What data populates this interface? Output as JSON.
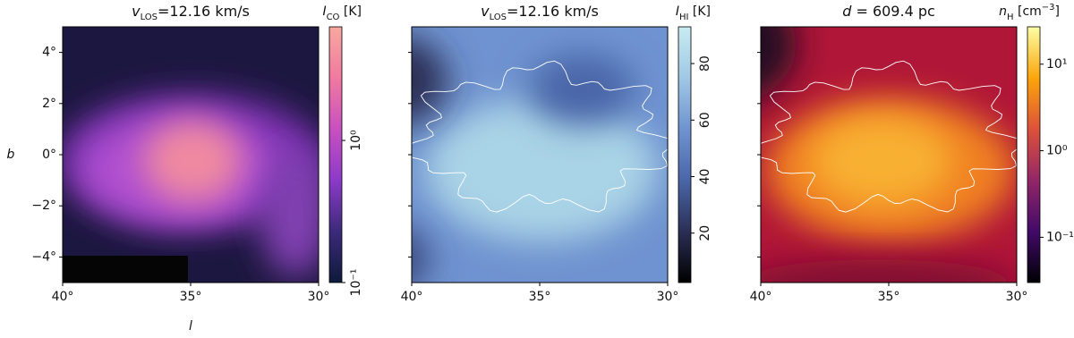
{
  "chart_data": [
    {
      "type": "image",
      "title": [
        {
          "text": "v",
          "style": "italic"
        },
        {
          "text": "LOS",
          "style": "sub"
        },
        {
          "text": "=12.16 km/s"
        }
      ],
      "xlabel": "l",
      "ylabel": "b",
      "xlim": [
        40,
        30
      ],
      "ylim": [
        -5,
        5
      ],
      "xticks": [
        {
          "value": 40,
          "label": "40°"
        },
        {
          "value": 35,
          "label": "35°"
        },
        {
          "value": 30,
          "label": "30°"
        }
      ],
      "yticks": [
        {
          "value": -4,
          "label": "−4°"
        },
        {
          "value": -2,
          "label": "−2°"
        },
        {
          "value": 0,
          "label": "0°"
        },
        {
          "value": 2,
          "label": "2°"
        },
        {
          "value": 4,
          "label": "4°"
        }
      ],
      "colorbar": {
        "label": [
          {
            "text": "I",
            "style": "italic"
          },
          {
            "text": "CO",
            "style": "sub"
          },
          {
            "text": " [K]"
          }
        ],
        "scale": "log",
        "lim": [
          0.1,
          6.3
        ],
        "ticks": [
          {
            "value": 0.1,
            "label": "10⁻¹"
          },
          {
            "value": 1,
            "label": "10⁰"
          }
        ],
        "tick_rotation": 90,
        "colors": [
          "#0d1a3a",
          "#3c2a7a",
          "#8c3ac8",
          "#c850c0",
          "#f07aa0",
          "#f8a8a0"
        ]
      }
    },
    {
      "type": "image",
      "title": [
        {
          "text": "v",
          "style": "italic"
        },
        {
          "text": "LOS",
          "style": "sub"
        },
        {
          "text": "=12.16 km/s"
        }
      ],
      "xlim": [
        40,
        30
      ],
      "ylim": [
        -5,
        5
      ],
      "xticks": [
        {
          "value": 40,
          "label": "40°"
        },
        {
          "value": 35,
          "label": "35°"
        },
        {
          "value": 30,
          "label": "30°"
        }
      ],
      "yticks": [
        -4,
        -2,
        0,
        2,
        4
      ],
      "colorbar": {
        "label": [
          {
            "text": "I",
            "style": "italic"
          },
          {
            "text": "HI",
            "style": "sub"
          },
          {
            "text": " [K]"
          }
        ],
        "scale": "linear",
        "lim": [
          2.5,
          93
        ],
        "ticks": [
          20,
          40,
          60,
          80
        ],
        "tick_rotation": 90,
        "colors": [
          "#000000",
          "#2a2f55",
          "#4a66a8",
          "#6f93d0",
          "#a0c8e4",
          "#c8ecf0"
        ]
      }
    },
    {
      "type": "image",
      "title": [
        {
          "text": "d",
          "style": "italic"
        },
        {
          "text": " = 609.4 pc"
        }
      ],
      "xlim": [
        40,
        30
      ],
      "ylim": [
        -5,
        5
      ],
      "xticks": [
        {
          "value": 40,
          "label": "40°"
        },
        {
          "value": 35,
          "label": "35°"
        },
        {
          "value": 30,
          "label": "30°"
        }
      ],
      "yticks": [
        -4,
        -2,
        0,
        2,
        4
      ],
      "colorbar": {
        "label": [
          {
            "text": "n",
            "style": "italic"
          },
          {
            "text": "H",
            "style": "sub"
          },
          {
            "text": " [cm"
          },
          {
            "text": "−3",
            "style": "sup"
          },
          {
            "text": "]"
          }
        ],
        "scale": "log",
        "lim": [
          0.03,
          27
        ],
        "ticks": [
          {
            "value": 0.1,
            "label": "10⁻¹"
          },
          {
            "value": 1,
            "label": "10⁰"
          },
          {
            "value": 10,
            "label": "10¹"
          }
        ],
        "tick_rotation": 0,
        "colors": [
          "#000004",
          "#420a68",
          "#932667",
          "#dd513a",
          "#fca50a",
          "#fcffa4"
        ]
      }
    }
  ]
}
